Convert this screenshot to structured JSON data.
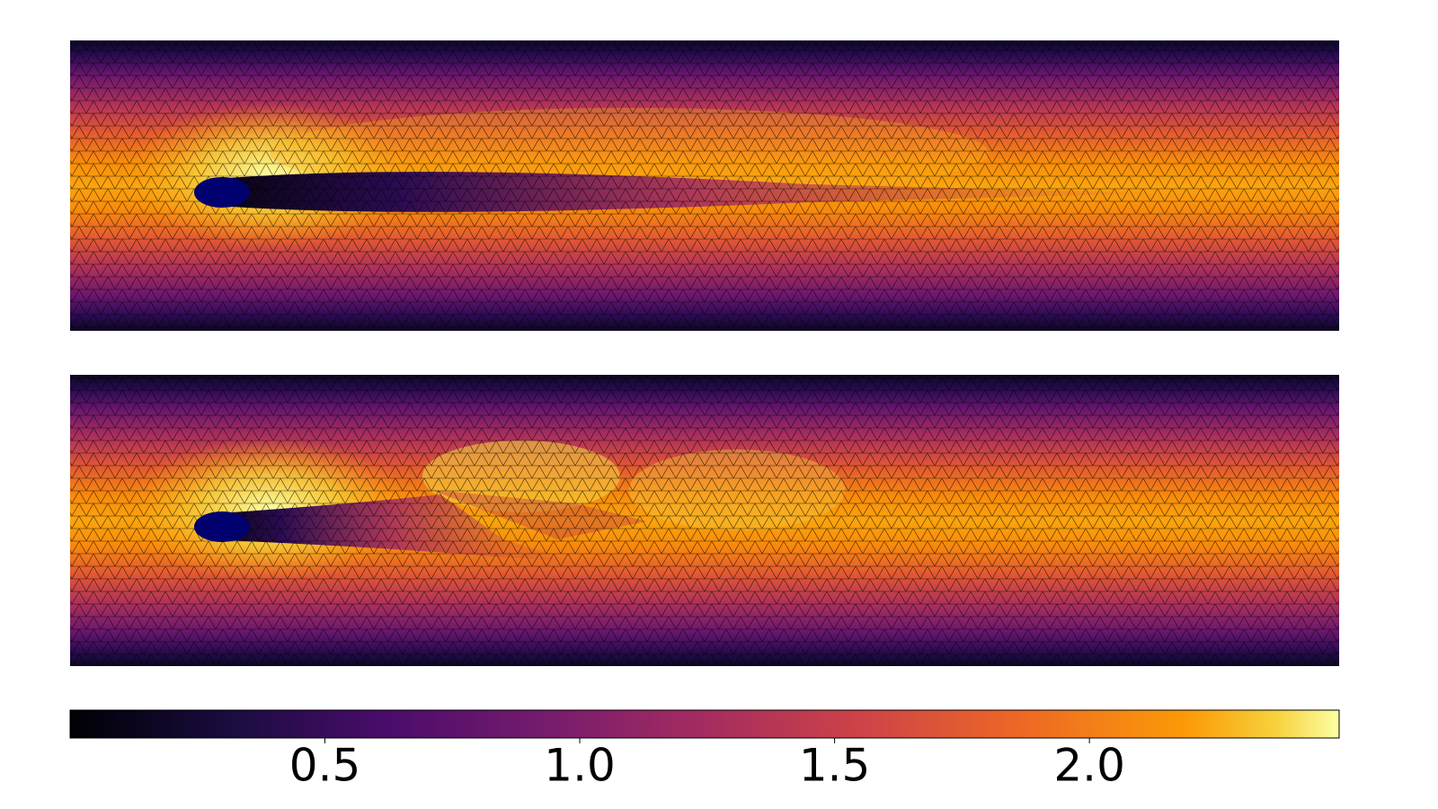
{
  "chart_data": {
    "type": "colorbar",
    "colormap": "inferno",
    "clim": [
      0,
      2.49
    ],
    "ticks": [
      0.5,
      {
        "value": 1,
        "label": "1.0"
      },
      1.5,
      {
        "value": 2,
        "label": "2.0"
      }
    ]
  }
}
